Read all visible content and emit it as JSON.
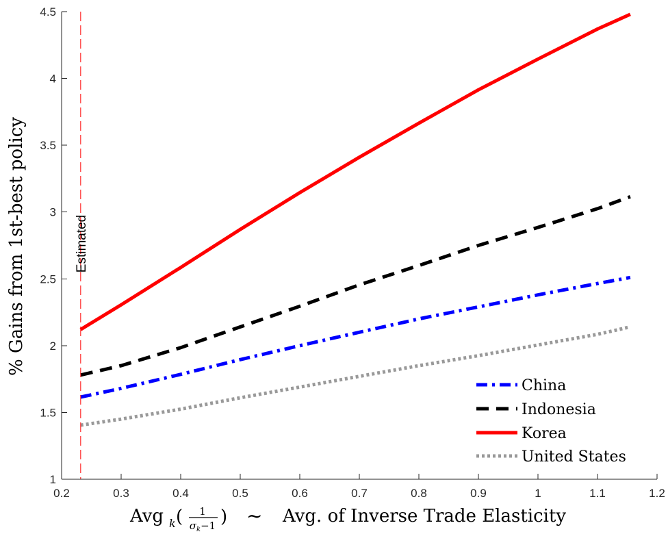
{
  "chart_data": {
    "type": "line",
    "xlim": [
      0.2,
      1.2
    ],
    "ylim": [
      1,
      4.5
    ],
    "xticks": [
      0.2,
      0.3,
      0.4,
      0.5,
      0.6,
      0.7,
      0.8,
      0.9,
      1,
      1.1,
      1.2
    ],
    "yticks": [
      1,
      1.5,
      2,
      2.5,
      3,
      3.5,
      4,
      4.5
    ],
    "xtick_labels": [
      "0.2",
      "0.3",
      "0.4",
      "0.5",
      "0.6",
      "0.7",
      "0.8",
      "0.9",
      "1",
      "1.1",
      "1.2"
    ],
    "ytick_labels": [
      "1",
      "1.5",
      "2",
      "2.5",
      "3",
      "3.5",
      "4",
      "4.5"
    ],
    "ylabel": "% Gains from 1st-best policy",
    "xlabel": {
      "prefix": "Avg",
      "subscript": "k",
      "frac_numerator": "1",
      "frac_denominator": "σk−1",
      "tilde": "~",
      "suffix": "Avg. of Inverse Trade Elasticity"
    },
    "grid": false,
    "legend_position": "bottom-right",
    "annotation": {
      "text": "Estimated",
      "x": 0.232,
      "color": "#ff0000"
    },
    "series": [
      {
        "name": "China",
        "color": "#0000ff",
        "style": "dash-dot",
        "x": [
          0.232,
          0.3,
          0.4,
          0.5,
          0.6,
          0.7,
          0.8,
          0.9,
          1.0,
          1.1,
          1.155
        ],
        "y": [
          1.615,
          1.68,
          1.785,
          1.895,
          2.0,
          2.1,
          2.2,
          2.29,
          2.38,
          2.465,
          2.51
        ]
      },
      {
        "name": "Indonesia",
        "color": "#000000",
        "style": "dashed",
        "x": [
          0.232,
          0.3,
          0.4,
          0.5,
          0.6,
          0.7,
          0.8,
          0.9,
          1.0,
          1.1,
          1.155
        ],
        "y": [
          1.78,
          1.85,
          1.985,
          2.14,
          2.295,
          2.455,
          2.6,
          2.75,
          2.885,
          3.025,
          3.115
        ]
      },
      {
        "name": "Korea",
        "color": "#ff0000",
        "style": "solid",
        "x": [
          0.232,
          0.25,
          0.3,
          0.4,
          0.5,
          0.6,
          0.7,
          0.8,
          0.82,
          0.9,
          1.0,
          1.1,
          1.155
        ],
        "y": [
          2.12,
          2.17,
          2.305,
          2.585,
          2.87,
          3.145,
          3.41,
          3.665,
          3.715,
          3.915,
          4.145,
          4.37,
          4.48
        ]
      },
      {
        "name": "United States",
        "color": "#999999",
        "style": "dotted",
        "x": [
          0.232,
          0.3,
          0.4,
          0.5,
          0.6,
          0.7,
          0.8,
          0.9,
          1.0,
          1.1,
          1.155
        ],
        "y": [
          1.405,
          1.45,
          1.525,
          1.61,
          1.69,
          1.77,
          1.85,
          1.925,
          2.005,
          2.085,
          2.14
        ]
      }
    ]
  }
}
